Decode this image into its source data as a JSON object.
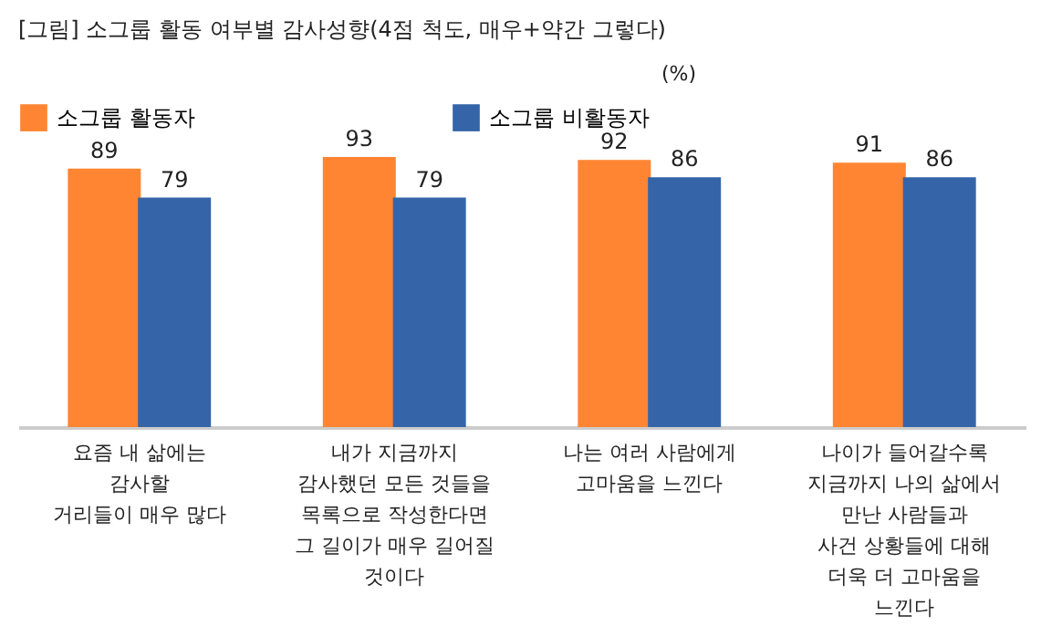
{
  "chart_data": {
    "type": "bar",
    "title": "[그림] 소그룹 활동 여부별 감사성향(4점 척도, 매우+약간 그렇다)",
    "annotations": [
      "(%)"
    ],
    "categories": [
      "요즘 내 삶에는\n감사할\n거리들이 매우 많다",
      "내가 지금까지\n감사했던 모든 것들을\n목록으로 작성한다면\n그 길이가 매우 길어질\n것이다",
      "나는 여러 사람에게\n고마움을 느낀다",
      "나이가 들어갈수록\n지금까지 나의 삶에서\n만난 사람들과\n사건 상황들에 대해\n더욱 더 고마움을\n느낀다"
    ],
    "series": [
      {
        "name": "소그룹 활동자",
        "color": "#ff8533",
        "values": [
          89,
          93,
          92,
          91
        ]
      },
      {
        "name": "소그룹 비활동자",
        "color": "#3565a8",
        "values": [
          79,
          79,
          86,
          86
        ]
      }
    ],
    "data_labels": true,
    "tick_labels": "x",
    "grid": false,
    "legend": "top"
  }
}
